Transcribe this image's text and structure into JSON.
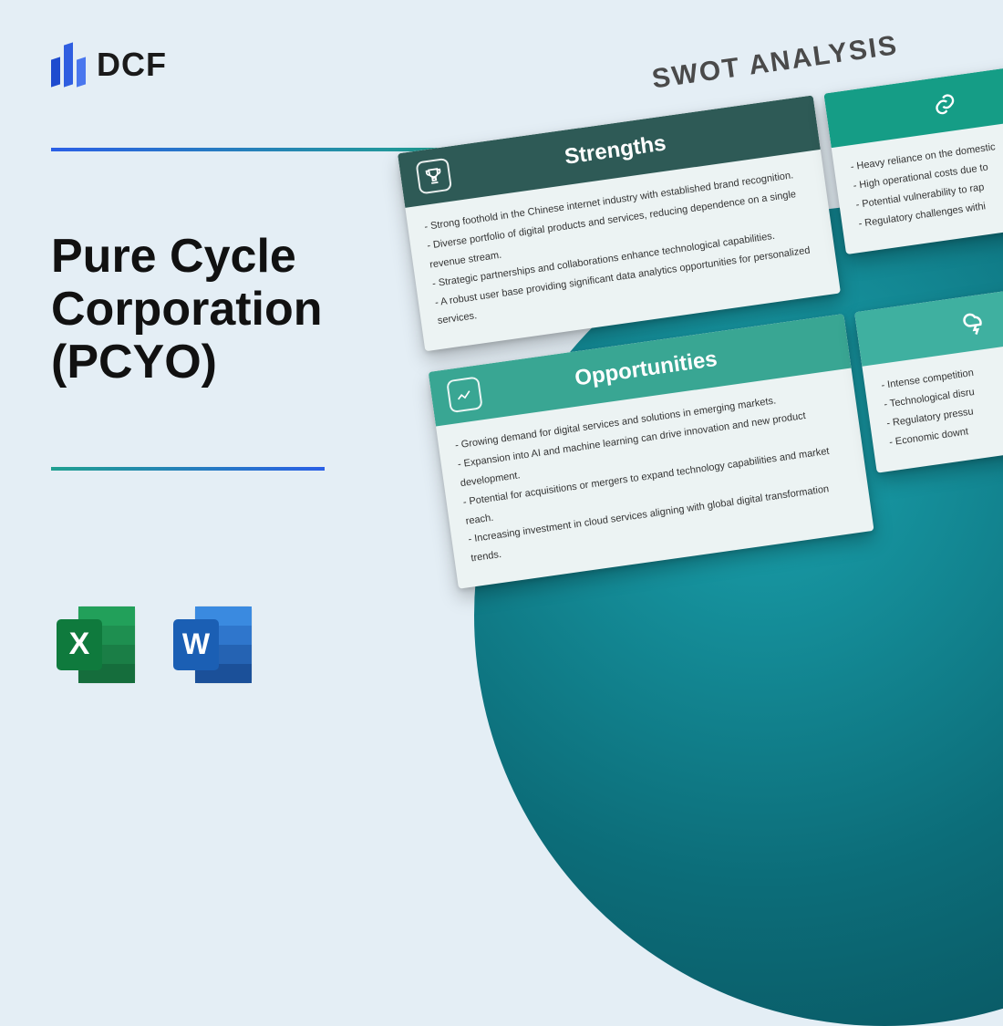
{
  "logo_text": "DCF",
  "title": "Pure Cycle\nCorporation\n(PCYO)",
  "swot_heading": "SWOT ANALYSIS",
  "colors": {
    "page_bg": "#e4eef5",
    "rule_gradient": [
      "#2a5fe6",
      "#20a090"
    ],
    "circle_gradient": [
      "#1aa2ad",
      "#0c6d79",
      "#084c57"
    ],
    "strengths_header": "#2e5a56",
    "opportunities_header": "#39a693",
    "weaknesses_header": "#159d86",
    "threats_header": "#3fb0a0",
    "card_bg": "#ecf3f3",
    "title_text": "#111111",
    "excel_dark": "#0f7a3d",
    "excel_light": "#22a05a",
    "word_dark": "#1b5fb4",
    "word_light": "#3a8ae0"
  },
  "fontsizes": {
    "title": 52,
    "logo": 36,
    "swot_heading": 30,
    "card_header": 24,
    "bullet": 11
  },
  "icons": {
    "excel_letter": "X",
    "word_letter": "W"
  },
  "swot": {
    "strengths": {
      "label": "Strengths",
      "items": [
        "Strong foothold in the Chinese internet industry with established brand recognition.",
        "Diverse portfolio of digital products and services, reducing dependence on a single revenue stream.",
        "Strategic partnerships and collaborations enhance technological capabilities.",
        "A robust user base providing significant data analytics opportunities for personalized services."
      ]
    },
    "opportunities": {
      "label": "Opportunities",
      "items": [
        "Growing demand for digital services and solutions in emerging markets.",
        "Expansion into AI and machine learning can drive innovation and new product development.",
        "Potential for acquisitions or mergers to expand technology capabilities and market reach.",
        "Increasing investment in cloud services aligning with global digital transformation trends."
      ]
    },
    "weaknesses": {
      "items": [
        "Heavy reliance on the domestic",
        "High operational costs due to",
        "Potential vulnerability to rap",
        "Regulatory challenges withi"
      ]
    },
    "threats": {
      "items": [
        "Intense competition",
        "Technological disru",
        "Regulatory pressu",
        "Economic downt"
      ]
    }
  }
}
